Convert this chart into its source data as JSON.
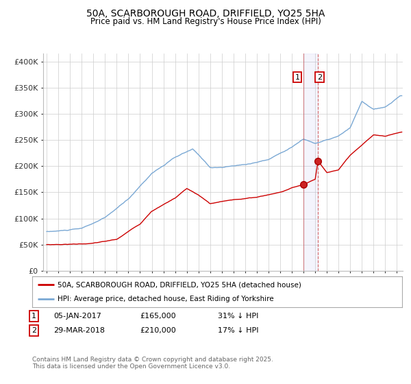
{
  "title": "50A, SCARBOROUGH ROAD, DRIFFIELD, YO25 5HA",
  "subtitle": "Price paid vs. HM Land Registry's House Price Index (HPI)",
  "background_color": "#ffffff",
  "plot_bg_color": "#ffffff",
  "grid_color": "#cccccc",
  "ylabel_values": [
    "£0",
    "£50K",
    "£100K",
    "£150K",
    "£200K",
    "£250K",
    "£300K",
    "£350K",
    "£400K"
  ],
  "ytick_values": [
    0,
    50000,
    100000,
    150000,
    200000,
    250000,
    300000,
    350000,
    400000
  ],
  "ylim": [
    0,
    415000
  ],
  "xlim_start": 1994.7,
  "xlim_end": 2025.5,
  "line1_color": "#cc0000",
  "line2_color": "#7aa8d4",
  "marker1_date": 2017.01,
  "marker1_value": 165000,
  "marker2_date": 2018.24,
  "marker2_value": 210000,
  "vline1_date": 2017.01,
  "vline2_date": 2018.24,
  "annotation1": {
    "num": "1",
    "date": "05-JAN-2017",
    "price": "£165,000",
    "pct": "31% ↓ HPI"
  },
  "annotation2": {
    "num": "2",
    "date": "29-MAR-2018",
    "price": "£210,000",
    "pct": "17% ↓ HPI"
  },
  "footer_text": "Contains HM Land Registry data © Crown copyright and database right 2025.\nThis data is licensed under the Open Government Licence v3.0.",
  "legend_label1": "50A, SCARBOROUGH ROAD, DRIFFIELD, YO25 5HA (detached house)",
  "legend_label2": "HPI: Average price, detached house, East Riding of Yorkshire"
}
